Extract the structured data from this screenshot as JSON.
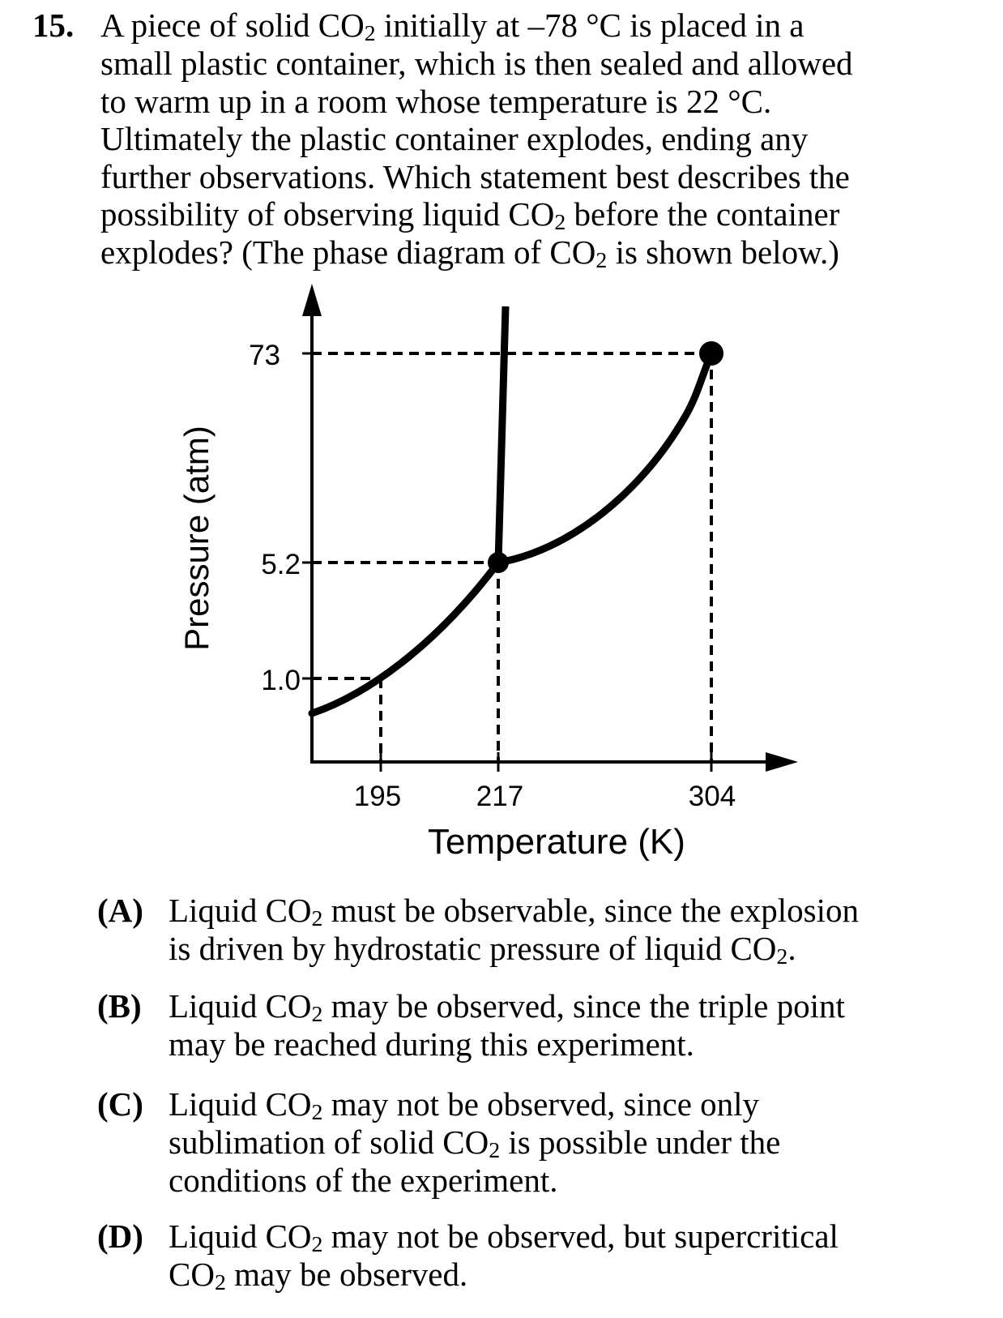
{
  "question": {
    "number": "15.",
    "lines": [
      [
        "A piece of solid CO",
        "2",
        " initially at –78 °C is placed in a"
      ],
      [
        "small plastic container, which is then sealed and allowed"
      ],
      [
        "to warm up in a room whose temperature is 22 °C."
      ],
      [
        "Ultimately the plastic container explodes, ending any"
      ],
      [
        "further observations.  Which statement best describes the"
      ],
      [
        "possibility of observing liquid CO",
        "2",
        " before the container"
      ],
      [
        "explodes? (The phase diagram of CO",
        "2",
        " is shown below.)"
      ]
    ]
  },
  "chart_data": {
    "type": "line",
    "xlabel": "Temperature (K)",
    "ylabel": "Pressure (atm)",
    "x_ticks": [
      "195",
      "217",
      "304"
    ],
    "y_ticks": [
      "1.0",
      "5.2",
      "73"
    ],
    "points": [
      {
        "T": 195,
        "P": 1.0,
        "marker": false
      },
      {
        "T": 217,
        "P": 5.2,
        "marker": true
      },
      {
        "T": 304,
        "P": 73,
        "marker": true
      }
    ]
  },
  "choices": [
    {
      "letter": "(A)",
      "lines": [
        [
          "Liquid CO",
          "2",
          " must be observable, since the explosion"
        ],
        [
          "is driven by hydrostatic pressure of liquid CO",
          "2",
          "."
        ]
      ]
    },
    {
      "letter": "(B)",
      "lines": [
        [
          "Liquid CO",
          "2",
          " may be observed, since the triple point"
        ],
        [
          "may be reached during this experiment."
        ]
      ]
    },
    {
      "letter": "(C)",
      "lines": [
        [
          "Liquid CO",
          "2",
          " may not be observed, since only"
        ],
        [
          "sublimation of solid CO",
          "2",
          " is possible under the"
        ],
        [
          "conditions of the experiment."
        ]
      ]
    },
    {
      "letter": "(D)",
      "lines": [
        [
          "Liquid CO",
          "2",
          " may not be observed, but supercritical"
        ],
        [
          "CO",
          "2",
          " may be observed."
        ]
      ]
    }
  ]
}
